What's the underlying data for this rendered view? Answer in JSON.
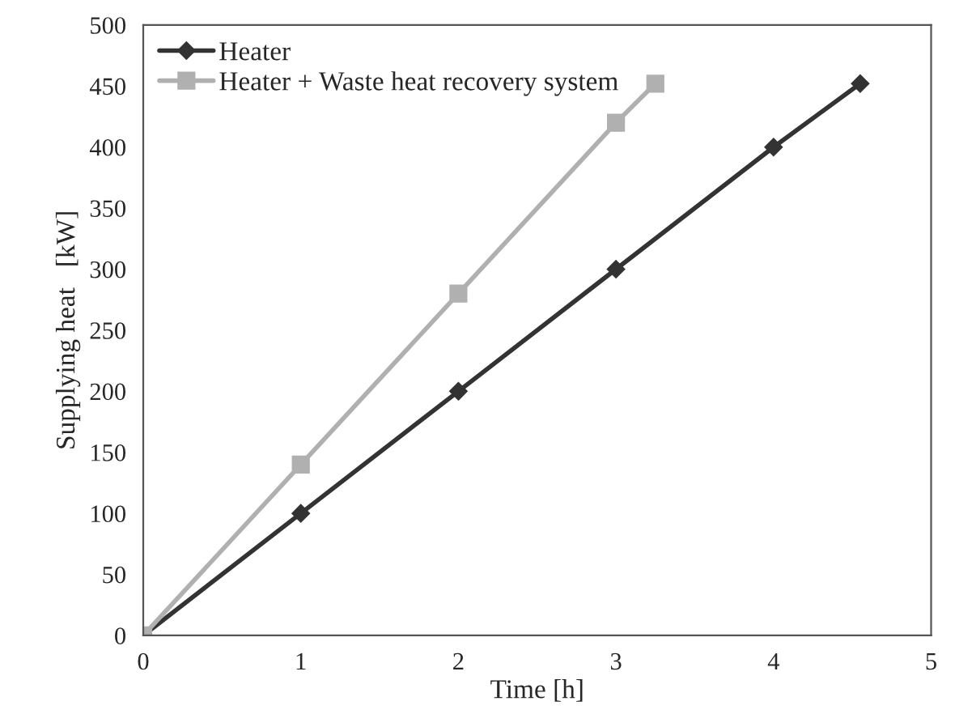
{
  "chart_data": {
    "type": "line",
    "xlabel": "Time [h]",
    "ylabel": "Supplying heat   [kW]",
    "xlim": [
      0,
      5
    ],
    "xticks": [
      0,
      1,
      2,
      3,
      4,
      5
    ],
    "ylim": [
      0,
      500
    ],
    "yticks": [
      0,
      50,
      100,
      150,
      200,
      250,
      300,
      350,
      400,
      450,
      500
    ],
    "grid": false,
    "legend": "top left",
    "series": [
      {
        "name": "Heater",
        "color": "#333333",
        "marker": "diamond",
        "x": [
          0,
          1,
          2,
          3,
          4,
          4.55
        ],
        "values": [
          0,
          100,
          200,
          300,
          400,
          452
        ]
      },
      {
        "name": "Heater + Waste heat recovery system",
        "color": "#b0b0b0",
        "marker": "square",
        "x": [
          0,
          1,
          2,
          3,
          3.25
        ],
        "values": [
          0,
          140,
          280,
          420,
          452
        ]
      }
    ]
  }
}
